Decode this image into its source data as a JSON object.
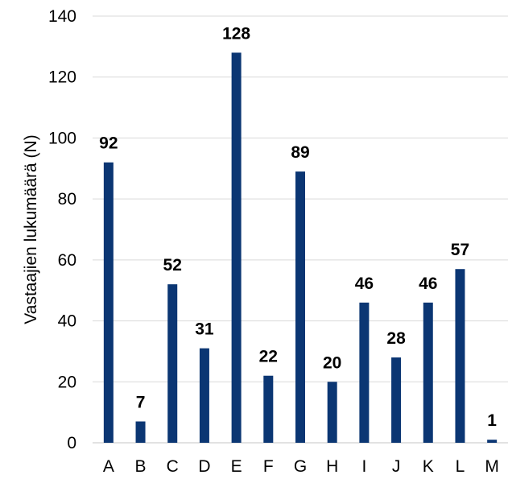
{
  "chart_data": {
    "type": "bar",
    "title": "",
    "xlabel": "",
    "ylabel": "Vastaajien lukumäärä (N)",
    "categories": [
      "A",
      "B",
      "C",
      "D",
      "E",
      "F",
      "G",
      "H",
      "I",
      "J",
      "K",
      "L",
      "M"
    ],
    "values": [
      92,
      7,
      52,
      31,
      128,
      22,
      89,
      20,
      46,
      28,
      46,
      57,
      1
    ],
    "ylim": [
      0,
      140
    ],
    "yticks": [
      0,
      20,
      40,
      60,
      80,
      100,
      120,
      140
    ],
    "grid": true,
    "legend": "none",
    "data_labels": true,
    "bar_color": "#0b3673"
  }
}
